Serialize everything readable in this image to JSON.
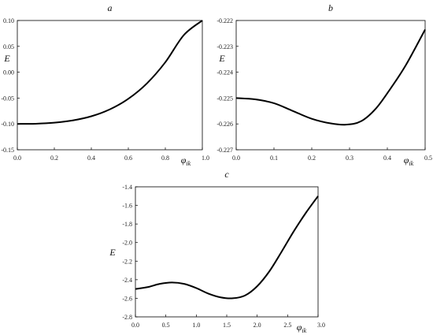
{
  "chart_data": [
    {
      "type": "line",
      "title": "a",
      "xlabel": "φ",
      "xlabel_sub": "ik",
      "ylabel": "E",
      "xlim": [
        0.0,
        1.0
      ],
      "ylim": [
        -0.15,
        0.1
      ],
      "xticks": [
        0.0,
        0.2,
        0.4,
        0.6,
        0.8,
        1.0
      ],
      "xtick_labels": [
        "0.0",
        "0.2",
        "0.4",
        "0.6",
        "0.8",
        "1.0"
      ],
      "yticks": [
        -0.15,
        -0.1,
        -0.05,
        0.0,
        0.05,
        0.1
      ],
      "ytick_labels": [
        "-0.15",
        "-0.10",
        "-0.05",
        "0.00",
        "0.05",
        "0.10"
      ],
      "grid": false,
      "series": [
        {
          "x": [
            0.0,
            0.1,
            0.2,
            0.3,
            0.4,
            0.5,
            0.6,
            0.7,
            0.8,
            0.9,
            1.0
          ],
          "y": [
            -0.1,
            -0.0996,
            -0.0976,
            -0.0932,
            -0.0852,
            -0.0719,
            -0.0514,
            -0.0218,
            0.0193,
            0.0718,
            0.1
          ]
        }
      ]
    },
    {
      "type": "line",
      "title": "b",
      "xlabel": "φ",
      "xlabel_sub": "ik",
      "ylabel": "E",
      "xlim": [
        0.0,
        0.5
      ],
      "ylim": [
        -0.227,
        -0.222
      ],
      "xticks": [
        0.0,
        0.1,
        0.2,
        0.3,
        0.4,
        0.5
      ],
      "xtick_labels": [
        "0.0",
        "0.1",
        "0.2",
        "0.3",
        "0.4",
        "0.5"
      ],
      "yticks": [
        -0.227,
        -0.226,
        -0.225,
        -0.224,
        -0.223,
        -0.222
      ],
      "ytick_labels": [
        "-0.227",
        "-0.226",
        "-0.225",
        "-0.224",
        "-0.223",
        "-0.222"
      ],
      "grid": false,
      "series": [
        {
          "x": [
            0.0,
            0.05,
            0.1,
            0.15,
            0.2,
            0.25,
            0.29,
            0.33,
            0.37,
            0.41,
            0.45,
            0.5
          ],
          "y": [
            -0.225,
            -0.22505,
            -0.2252,
            -0.2255,
            -0.2258,
            -0.22598,
            -0.22603,
            -0.2259,
            -0.2254,
            -0.2246,
            -0.2237,
            -0.22235
          ]
        }
      ]
    },
    {
      "type": "line",
      "title": "c",
      "xlabel": "φ",
      "xlabel_sub": "ik",
      "ylabel": "E",
      "xlim": [
        0.0,
        3.0
      ],
      "ylim": [
        -2.8,
        -1.4
      ],
      "xticks": [
        0.0,
        0.5,
        1.0,
        1.5,
        2.0,
        2.5,
        3.0
      ],
      "xtick_labels": [
        "0.0",
        "0.5",
        "1.0",
        "1.5",
        "2.0",
        "2.5",
        "3.0"
      ],
      "yticks": [
        -2.8,
        -2.6,
        -2.4,
        -2.2,
        -2.0,
        -1.8,
        -1.6,
        -1.4
      ],
      "ytick_labels": [
        "-2.8",
        "-2.6",
        "-2.4",
        "-2.2",
        "-2.0",
        "-1.8",
        "-1.6",
        "-1.4"
      ],
      "grid": false,
      "series": [
        {
          "x": [
            0.0,
            0.2,
            0.4,
            0.6,
            0.8,
            1.0,
            1.2,
            1.4,
            1.6,
            1.8,
            2.0,
            2.2,
            2.4,
            2.6,
            2.8,
            3.0
          ],
          "y": [
            -2.5,
            -2.48,
            -2.445,
            -2.43,
            -2.445,
            -2.49,
            -2.55,
            -2.59,
            -2.6,
            -2.57,
            -2.47,
            -2.31,
            -2.1,
            -1.88,
            -1.68,
            -1.5
          ]
        }
      ]
    }
  ]
}
